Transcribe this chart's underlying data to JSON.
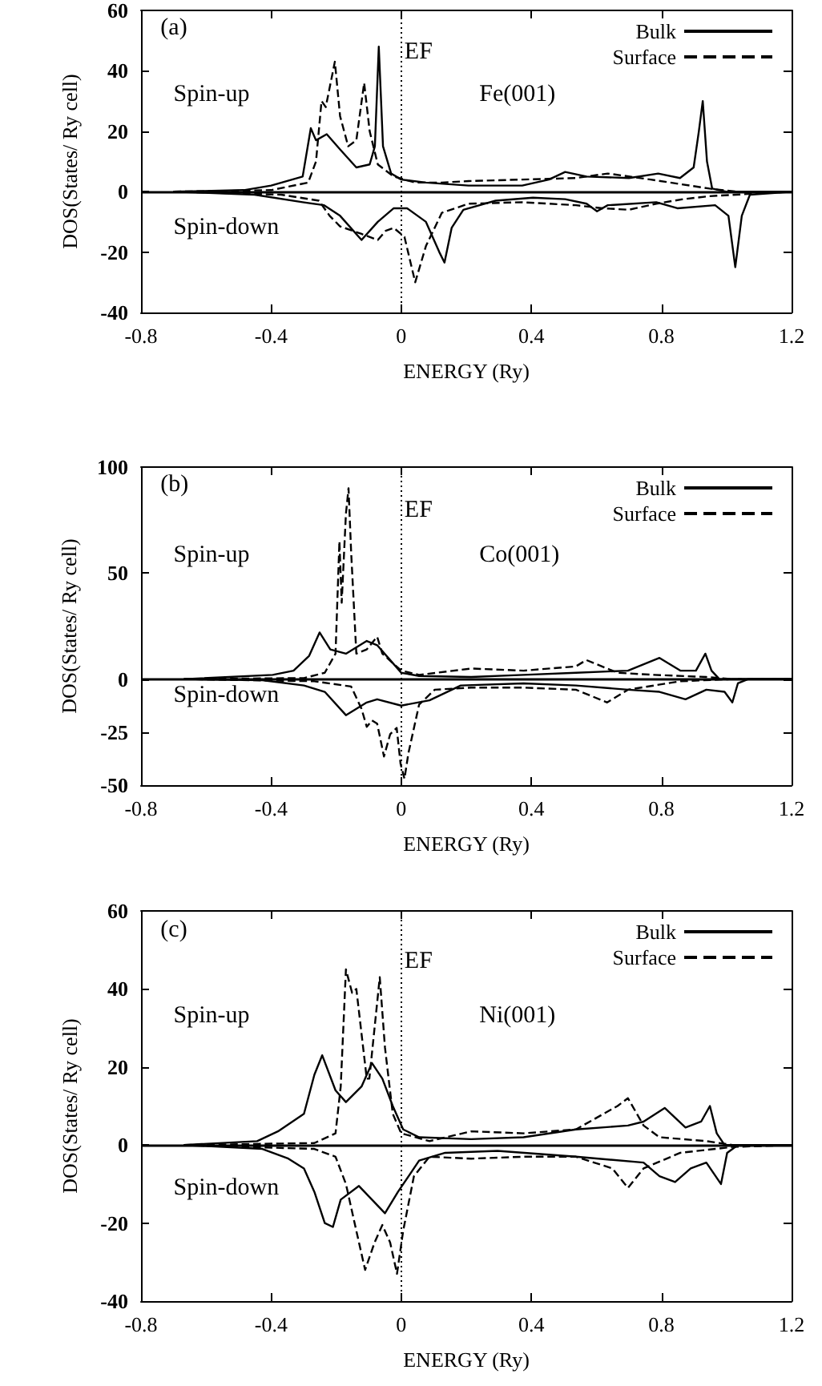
{
  "chart_data": [
    {
      "type": "line",
      "xlabel": "ENERGY (Ry)",
      "ylabel": "DOS(States/ Ry cell)",
      "annotations": [
        "(a)",
        "Spin-up",
        "Spin-down",
        "Fe(001)"
      ],
      "xlim": [
        -0.8,
        1.2
      ],
      "xticks": [
        -0.8,
        -0.4,
        0,
        0.4,
        0.8,
        1.2
      ],
      "ylim": [
        -40,
        60
      ],
      "yticks": [
        -40,
        -20,
        0,
        20,
        40,
        60
      ],
      "legend": "top right",
      "grid": false,
      "marker": "none",
      "ref_lines": [
        {
          "axis": "x",
          "value": 0,
          "label": "EF",
          "line_style": "dotted",
          "color": "#000000"
        },
        {
          "axis": "y",
          "value": 0,
          "line_style": "solid",
          "color": "#000000"
        }
      ],
      "series": [
        {
          "name": "Bulk",
          "color": "#000000",
          "line_style": "solid",
          "x": [
            -0.7,
            -0.484,
            -0.4,
            -0.303,
            -0.278,
            -0.262,
            -0.229,
            -0.188,
            -0.138,
            -0.097,
            -0.081,
            -0.069,
            -0.056,
            -0.031,
            0,
            0.076,
            0.207,
            0.372,
            0.454,
            0.504,
            0.57,
            0.7,
            0.79,
            0.857,
            0.899,
            0.915,
            0.927,
            0.94,
            0.956,
            0.998,
            1.2
          ],
          "values": [
            0,
            0.5,
            2,
            5,
            21,
            17,
            19,
            14,
            8,
            9,
            15,
            48,
            15,
            6,
            4,
            3,
            2,
            2,
            4,
            6.5,
            5,
            4.5,
            6,
            4.5,
            8,
            20,
            30,
            10,
            1,
            0,
            0
          ]
        },
        {
          "name": "Surface",
          "color": "#000000",
          "line_style": "dashed",
          "x": [
            -0.7,
            -0.4,
            -0.286,
            -0.262,
            -0.245,
            -0.232,
            -0.204,
            -0.188,
            -0.163,
            -0.138,
            -0.114,
            -0.097,
            -0.072,
            -0.023,
            0.043,
            0.125,
            0.207,
            0.372,
            0.537,
            0.635,
            0.767,
            0.948,
            1.03,
            1.2
          ],
          "values": [
            0,
            0.5,
            3,
            10,
            30,
            28,
            43,
            25,
            15,
            17,
            36,
            20,
            9,
            5,
            3,
            3,
            3.5,
            4,
            4.5,
            6,
            4,
            1,
            0,
            0
          ]
        },
        {
          "color": "#000000",
          "line_style": "solid",
          "x": [
            -0.7,
            -0.451,
            -0.303,
            -0.237,
            -0.188,
            -0.122,
            -0.072,
            -0.023,
            0.018,
            0.076,
            0.117,
            0.133,
            0.155,
            0.191,
            0.29,
            0.405,
            0.504,
            0.57,
            0.602,
            0.635,
            0.784,
            0.849,
            0.965,
            1.006,
            1.027,
            1.047,
            1.072,
            1.2
          ],
          "values": [
            0,
            -1,
            -3.5,
            -4.5,
            -8,
            -16,
            -10,
            -5.5,
            -5.5,
            -10,
            -20,
            -23.5,
            -12,
            -6,
            -3,
            -2,
            -2.5,
            -4,
            -6.5,
            -4.5,
            -3.5,
            -5.5,
            -4.5,
            -8,
            -25,
            -8,
            -1,
            0
          ]
        },
        {
          "color": "#000000",
          "line_style": "dashed",
          "x": [
            -0.7,
            -0.369,
            -0.253,
            -0.22,
            -0.188,
            -0.122,
            -0.072,
            -0.048,
            -0.023,
            0.01,
            0.043,
            0.076,
            0.125,
            0.207,
            0.372,
            0.537,
            0.619,
            0.7,
            0.784,
            0.866,
            0.948,
            1.113,
            1.2
          ],
          "values": [
            0,
            -1,
            -3,
            -8,
            -11.5,
            -14,
            -16,
            -13,
            -12,
            -15,
            -30,
            -18,
            -7,
            -4,
            -3.5,
            -4.5,
            -5.5,
            -6,
            -4,
            -2.5,
            -1.5,
            -0.5,
            0
          ]
        }
      ]
    },
    {
      "type": "line",
      "xlabel": "ENERGY (Ry)",
      "ylabel": "DOS(States/ Ry cell)",
      "annotations": [
        "(b)",
        "Spin-up",
        "Spin-down",
        "Co(001)"
      ],
      "xlim": [
        -0.8,
        1.2
      ],
      "xticks": [
        -0.8,
        -0.4,
        0,
        0.4,
        0.8,
        1.2
      ],
      "ylim": [
        -50,
        100
      ],
      "yticks": [
        -50,
        -25,
        0,
        50,
        100
      ],
      "legend": "top right",
      "grid": false,
      "marker": "none",
      "ref_lines": [
        {
          "axis": "x",
          "value": 0,
          "label": "EF",
          "line_style": "dotted",
          "color": "#000000"
        },
        {
          "axis": "y",
          "value": 0,
          "line_style": "solid",
          "color": "#000000"
        }
      ],
      "series": [
        {
          "name": "Bulk",
          "color": "#000000",
          "line_style": "solid",
          "x": [
            -0.668,
            -0.395,
            -0.331,
            -0.283,
            -0.251,
            -0.218,
            -0.17,
            -0.106,
            -0.074,
            -0.034,
            0,
            0.055,
            0.215,
            0.376,
            0.537,
            0.697,
            0.794,
            0.858,
            0.906,
            0.935,
            0.954,
            0.978,
            1.2
          ],
          "values": [
            0,
            2,
            4,
            11,
            22,
            14,
            12,
            18,
            16,
            9,
            3,
            1.5,
            1,
            2,
            3,
            4,
            10,
            4,
            4,
            12,
            4,
            0,
            0
          ]
        },
        {
          "name": "Surface",
          "color": "#000000",
          "line_style": "dashed",
          "x": [
            -0.668,
            -0.299,
            -0.235,
            -0.202,
            -0.19,
            -0.183,
            -0.17,
            -0.162,
            -0.154,
            -0.138,
            -0.106,
            -0.074,
            -0.058,
            0,
            0.055,
            0.215,
            0.376,
            0.537,
            0.569,
            0.665,
            0.778,
            0.938,
            1.018,
            1.2
          ],
          "values": [
            0,
            0.5,
            3,
            12,
            65,
            36,
            78,
            90,
            60,
            12,
            14,
            20,
            12,
            4,
            2,
            5,
            4,
            6,
            9,
            3,
            2,
            1,
            0,
            0
          ]
        },
        {
          "color": "#000000",
          "line_style": "solid",
          "x": [
            -0.668,
            -0.427,
            -0.299,
            -0.235,
            -0.17,
            -0.106,
            -0.074,
            0,
            0.087,
            0.183,
            0.376,
            0.537,
            0.697,
            0.794,
            0.874,
            0.938,
            0.994,
            1.018,
            1.035,
            1.067,
            1.2
          ],
          "values": [
            0,
            -0.5,
            -3,
            -6,
            -17,
            -11,
            -9.5,
            -12.5,
            -10,
            -3,
            -2,
            -3,
            -5,
            -6,
            -9.5,
            -5,
            -6,
            -11,
            -2,
            0,
            0
          ]
        },
        {
          "color": "#000000",
          "line_style": "dashed",
          "x": [
            -0.668,
            -0.267,
            -0.154,
            -0.122,
            -0.106,
            -0.09,
            -0.074,
            -0.053,
            -0.034,
            -0.014,
            -0.002,
            0.01,
            0.022,
            0.055,
            0.103,
            0.215,
            0.376,
            0.537,
            0.633,
            0.697,
            0.858,
            1.018,
            1.2
          ],
          "values": [
            0,
            -1,
            -3.5,
            -14,
            -22.5,
            -19.5,
            -21,
            -36.5,
            -26,
            -23,
            -40,
            -47,
            -35,
            -12,
            -5,
            -4,
            -4,
            -5,
            -11,
            -5,
            -1,
            0,
            0
          ]
        }
      ]
    },
    {
      "type": "line",
      "xlabel": "ENERGY (Ry)",
      "ylabel": "DOS(States/ Ry cell)",
      "annotations": [
        "(c)",
        "Spin-up",
        "Spin-down",
        "Ni(001)"
      ],
      "xlim": [
        -0.8,
        1.2
      ],
      "xticks": [
        -0.8,
        -0.4,
        0,
        0.4,
        0.8,
        1.2
      ],
      "ylim": [
        -40,
        60
      ],
      "yticks": [
        -40,
        -20,
        0,
        20,
        40,
        60
      ],
      "legend": "top right",
      "grid": false,
      "marker": "none",
      "ref_lines": [
        {
          "axis": "x",
          "value": 0,
          "label": "EF",
          "line_style": "dotted",
          "color": "#000000"
        },
        {
          "axis": "y",
          "value": 0,
          "line_style": "solid",
          "color": "#000000"
        }
      ],
      "series": [
        {
          "name": "Bulk",
          "color": "#000000",
          "line_style": "solid",
          "x": [
            -0.668,
            -0.443,
            -0.379,
            -0.299,
            -0.267,
            -0.243,
            -0.202,
            -0.17,
            -0.122,
            -0.09,
            -0.058,
            -0.026,
            0.006,
            0.055,
            0.215,
            0.376,
            0.537,
            0.697,
            0.745,
            0.81,
            0.874,
            0.922,
            0.949,
            0.97,
            0.994,
            1.2
          ],
          "values": [
            0,
            1,
            3.5,
            8,
            18,
            23,
            14,
            11,
            15,
            21,
            17,
            10,
            4,
            2,
            1.5,
            2,
            4,
            5,
            6,
            9.5,
            4.5,
            6,
            10,
            3,
            0,
            0
          ]
        },
        {
          "name": "Surface",
          "color": "#000000",
          "line_style": "dashed",
          "x": [
            -0.668,
            -0.267,
            -0.202,
            -0.186,
            -0.17,
            -0.151,
            -0.138,
            -0.106,
            -0.098,
            -0.082,
            -0.066,
            -0.05,
            -0.026,
            0,
            0.087,
            0.215,
            0.376,
            0.537,
            0.665,
            0.697,
            0.745,
            0.794,
            0.938,
            1.018,
            1.2
          ],
          "values": [
            0,
            0.5,
            3,
            15,
            45,
            39,
            40,
            17,
            17,
            30,
            43,
            25,
            8,
            3,
            1,
            3.5,
            3,
            4,
            10,
            12,
            5,
            2,
            1,
            0,
            0
          ]
        },
        {
          "color": "#000000",
          "line_style": "solid",
          "x": [
            -0.668,
            -0.427,
            -0.347,
            -0.299,
            -0.267,
            -0.235,
            -0.21,
            -0.186,
            -0.13,
            -0.09,
            -0.05,
            -0.01,
            0.055,
            0.135,
            0.296,
            0.537,
            0.745,
            0.794,
            0.842,
            0.89,
            0.938,
            0.983,
            1.002,
            1.035,
            1.2
          ],
          "values": [
            0,
            -1,
            -3.5,
            -6,
            -12,
            -20,
            -21,
            -14,
            -10.5,
            -14,
            -17.5,
            -12,
            -4,
            -2,
            -1.5,
            -3,
            -4.5,
            -8,
            -9.5,
            -6,
            -4.5,
            -10,
            -2,
            0,
            0
          ]
        },
        {
          "color": "#000000",
          "line_style": "dashed",
          "x": [
            -0.668,
            -0.267,
            -0.202,
            -0.17,
            -0.138,
            -0.111,
            -0.082,
            -0.058,
            -0.034,
            -0.013,
            0.006,
            0.039,
            0.087,
            0.215,
            0.376,
            0.537,
            0.649,
            0.697,
            0.745,
            0.858,
            1.018,
            1.2
          ],
          "values": [
            0,
            -1,
            -3,
            -10,
            -22,
            -32,
            -25,
            -20.5,
            -25,
            -33,
            -22,
            -8,
            -3,
            -3.5,
            -3,
            -3,
            -6,
            -11,
            -6,
            -2,
            -0.5,
            0
          ]
        }
      ]
    }
  ]
}
